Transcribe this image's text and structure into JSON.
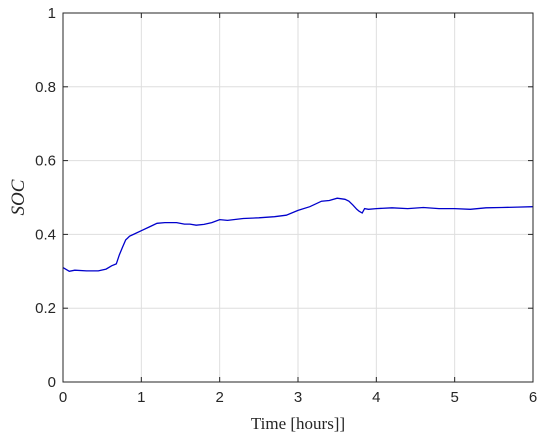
{
  "chart_data": {
    "type": "line",
    "title": "",
    "xlabel": "Time [hours]]",
    "ylabel": "SOC",
    "xlim": [
      0,
      6
    ],
    "ylim": [
      0,
      1
    ],
    "xticks": [
      0,
      1,
      2,
      3,
      4,
      5,
      6
    ],
    "yticks": [
      0,
      0.2,
      0.4,
      0.6,
      0.8,
      1
    ],
    "xtick_labels": [
      "0",
      "1",
      "2",
      "3",
      "4",
      "5",
      "6"
    ],
    "ytick_labels": [
      "0",
      "0.2",
      "0.4",
      "0.6",
      "0.8",
      "1"
    ],
    "grid": true,
    "legend": "none",
    "series": [
      {
        "color": "#0000cc",
        "x": [
          0,
          0.08,
          0.15,
          0.3,
          0.45,
          0.55,
          0.62,
          0.68,
          0.72,
          0.76,
          0.8,
          0.85,
          0.9,
          1.0,
          1.1,
          1.2,
          1.3,
          1.45,
          1.55,
          1.62,
          1.7,
          1.8,
          1.9,
          2.0,
          2.1,
          2.3,
          2.5,
          2.7,
          2.85,
          3.0,
          3.15,
          3.3,
          3.4,
          3.5,
          3.6,
          3.65,
          3.7,
          3.75,
          3.78,
          3.82,
          3.85,
          3.9,
          4.0,
          4.2,
          4.4,
          4.6,
          4.8,
          5.0,
          5.2,
          5.4,
          5.6,
          5.8,
          6.0
        ],
        "values": [
          0.31,
          0.3,
          0.303,
          0.301,
          0.301,
          0.306,
          0.315,
          0.32,
          0.345,
          0.365,
          0.385,
          0.395,
          0.4,
          0.41,
          0.42,
          0.43,
          0.432,
          0.432,
          0.428,
          0.428,
          0.425,
          0.427,
          0.432,
          0.44,
          0.438,
          0.443,
          0.445,
          0.448,
          0.452,
          0.465,
          0.475,
          0.49,
          0.492,
          0.498,
          0.495,
          0.49,
          0.48,
          0.468,
          0.463,
          0.458,
          0.47,
          0.468,
          0.47,
          0.472,
          0.47,
          0.473,
          0.47,
          0.47,
          0.468,
          0.472,
          0.473,
          0.474,
          0.475
        ]
      }
    ]
  }
}
